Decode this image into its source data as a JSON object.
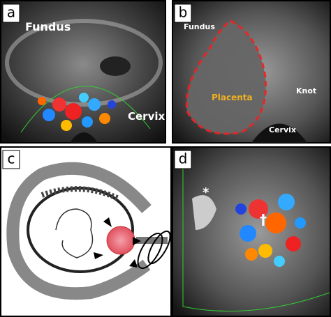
{
  "panels": [
    {
      "label": "a",
      "annotations": [
        "Fundus",
        "Cervix"
      ]
    },
    {
      "label": "b",
      "annotations": [
        "Fundus",
        "Placenta",
        "Knot",
        "Cervix"
      ]
    },
    {
      "label": "c",
      "annotations": []
    },
    {
      "label": "d",
      "annotations": [
        "*",
        "†"
      ]
    }
  ]
}
